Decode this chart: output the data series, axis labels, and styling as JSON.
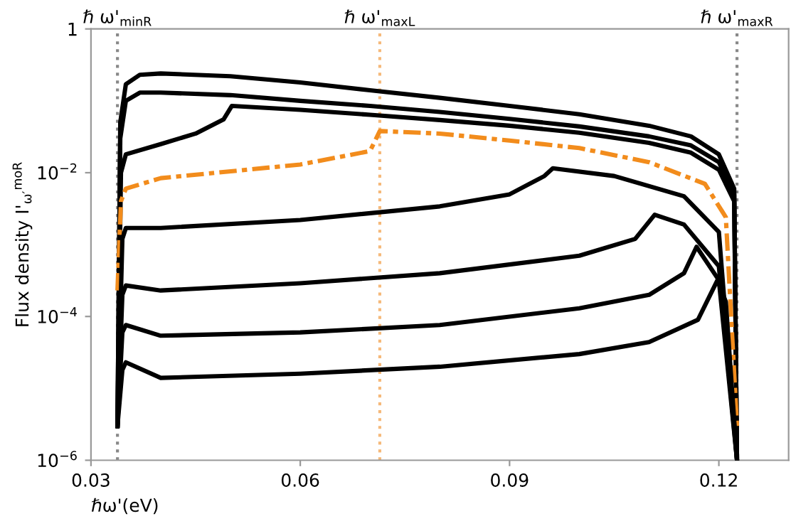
{
  "chart_data": {
    "type": "line",
    "xlabel": "ℏω'(eV)",
    "ylabel": "Flux density I'$_{ω′}$$^{moR}$",
    "log": "y",
    "xlim": [
      0.03,
      0.13
    ],
    "xticks": [
      0.03,
      0.06,
      0.09,
      0.12
    ],
    "ylim": [
      1e-06,
      1
    ],
    "yticks": [
      {
        "value": 1e-06,
        "label": "10$^{−6}$"
      },
      {
        "value": 0.0001,
        "label": "10$^{−4}$"
      },
      {
        "value": 0.01,
        "label": "10$^{−2}$"
      },
      1
    ],
    "grid": false,
    "ref_lines": [
      {
        "axis": "x",
        "value": 0.0338,
        "label": "ℏ ω'$_{minR}$",
        "color": "#888888",
        "line_style": "dotted"
      },
      {
        "axis": "x",
        "value": 0.0714,
        "label": "ℏ ω'$_{maxL}$",
        "color": "#f5b97a",
        "line_style": "dotted"
      },
      {
        "axis": "x",
        "value": 0.1226,
        "label": "ℏ ω'$_{maxR}$",
        "color": "#888888",
        "line_style": "dotted"
      }
    ],
    "series": [
      {
        "color": "#000000",
        "line_style": "solid",
        "x": [
          0.0338,
          0.0342,
          0.035,
          0.037,
          0.04,
          0.05,
          0.06,
          0.07,
          0.08,
          0.09,
          0.1,
          0.11,
          0.116,
          0.12,
          0.1222,
          0.1226
        ],
        "values": [
          3e-06,
          0.05,
          0.17,
          0.23,
          0.24,
          0.22,
          0.18,
          0.14,
          0.11,
          0.085,
          0.065,
          0.045,
          0.032,
          0.018,
          0.006,
          1e-06
        ]
      },
      {
        "color": "#000000",
        "line_style": "solid",
        "x": [
          0.0338,
          0.0342,
          0.035,
          0.037,
          0.04,
          0.05,
          0.06,
          0.07,
          0.08,
          0.09,
          0.1,
          0.11,
          0.116,
          0.12,
          0.1222,
          0.1226
        ],
        "values": [
          3e-06,
          0.03,
          0.1,
          0.13,
          0.13,
          0.12,
          0.1,
          0.085,
          0.07,
          0.056,
          0.044,
          0.032,
          0.024,
          0.014,
          0.005,
          1e-06
        ]
      },
      {
        "color": "#000000",
        "line_style": "solid",
        "x": [
          0.0338,
          0.0343,
          0.035,
          0.04,
          0.045,
          0.049,
          0.0502,
          0.06,
          0.07,
          0.08,
          0.09,
          0.1,
          0.11,
          0.116,
          0.12,
          0.1222,
          0.1226
        ],
        "values": [
          3e-06,
          0.01,
          0.018,
          0.025,
          0.035,
          0.055,
          0.085,
          0.075,
          0.064,
          0.054,
          0.045,
          0.036,
          0.026,
          0.019,
          0.011,
          0.004,
          1e-06
        ]
      },
      {
        "color": "#f28c1c",
        "line_style": "dashdot",
        "x": [
          0.0338,
          0.0343,
          0.035,
          0.04,
          0.06,
          0.07,
          0.0714,
          0.08,
          0.09,
          0.1,
          0.11,
          0.118,
          0.121,
          0.1226
        ],
        "values": [
          0.00023,
          0.004,
          0.006,
          0.0084,
          0.013,
          0.02,
          0.038,
          0.035,
          0.028,
          0.022,
          0.014,
          0.007,
          0.0024,
          3e-06
        ]
      },
      {
        "color": "#000000",
        "line_style": "solid",
        "x": [
          0.0338,
          0.0345,
          0.035,
          0.04,
          0.06,
          0.08,
          0.09,
          0.095,
          0.0962,
          0.105,
          0.115,
          0.12,
          0.1226
        ],
        "values": [
          3e-06,
          0.0012,
          0.0017,
          0.0017,
          0.0022,
          0.0034,
          0.005,
          0.009,
          0.0115,
          0.009,
          0.0047,
          0.0015,
          1e-06
        ]
      },
      {
        "color": "#000000",
        "line_style": "solid",
        "x": [
          0.0338,
          0.0345,
          0.035,
          0.04,
          0.06,
          0.08,
          0.1,
          0.108,
          0.1108,
          0.115,
          0.12,
          0.1226
        ],
        "values": [
          3e-06,
          0.0002,
          0.00027,
          0.00023,
          0.00029,
          0.0004,
          0.0007,
          0.0012,
          0.0026,
          0.0019,
          0.0005,
          1e-06
        ]
      },
      {
        "color": "#000000",
        "line_style": "solid",
        "x": [
          0.0338,
          0.0345,
          0.035,
          0.04,
          0.06,
          0.08,
          0.1,
          0.11,
          0.115,
          0.1168,
          0.12,
          0.1226
        ],
        "values": [
          3e-06,
          6e-05,
          7.6e-05,
          5.4e-05,
          6e-05,
          7.6e-05,
          0.00013,
          0.0002,
          0.0004,
          0.00093,
          0.00032,
          1e-06
        ]
      },
      {
        "color": "#000000",
        "line_style": "solid",
        "x": [
          0.0338,
          0.0345,
          0.035,
          0.04,
          0.06,
          0.08,
          0.1,
          0.11,
          0.117,
          0.1198,
          0.121,
          0.1226
        ],
        "values": [
          3e-06,
          1.8e-05,
          2.3e-05,
          1.4e-05,
          1.6e-05,
          2e-05,
          3e-05,
          4.4e-05,
          9e-05,
          0.00032,
          0.00016,
          1e-06
        ]
      }
    ]
  }
}
